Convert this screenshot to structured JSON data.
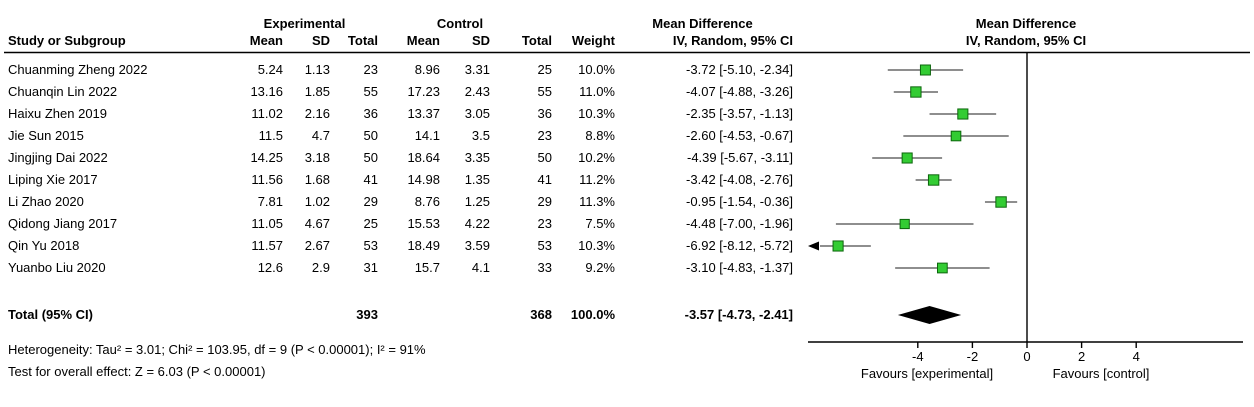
{
  "table": {
    "group_headers": {
      "experimental": "Experimental",
      "control": "Control",
      "md_text": "Mean Difference",
      "md_plot": "Mean Difference"
    },
    "col_headers": {
      "study": "Study or Subgroup",
      "mean1": "Mean",
      "sd1": "SD",
      "total1": "Total",
      "mean2": "Mean",
      "sd2": "SD",
      "total2": "Total",
      "weight": "Weight",
      "ci": "IV, Random, 95% CI",
      "ci_plot": "IV, Random, 95% CI"
    },
    "studies": [
      {
        "name": "Chuanming Zheng 2022",
        "mean1": "5.24",
        "sd1": "1.13",
        "n1": "23",
        "mean2": "8.96",
        "sd2": "3.31",
        "n2": "25",
        "weight": "10.0%",
        "ci": "-3.72 [-5.10, -2.34]"
      },
      {
        "name": "Chuanqin Lin 2022",
        "mean1": "13.16",
        "sd1": "1.85",
        "n1": "55",
        "mean2": "17.23",
        "sd2": "2.43",
        "n2": "55",
        "weight": "11.0%",
        "ci": "-4.07 [-4.88, -3.26]"
      },
      {
        "name": "Haixu Zhen 2019",
        "mean1": "11.02",
        "sd1": "2.16",
        "n1": "36",
        "mean2": "13.37",
        "sd2": "3.05",
        "n2": "36",
        "weight": "10.3%",
        "ci": "-2.35 [-3.57, -1.13]"
      },
      {
        "name": "Jie Sun 2015",
        "mean1": "11.5",
        "sd1": "4.7",
        "n1": "50",
        "mean2": "14.1",
        "sd2": "3.5",
        "n2": "23",
        "weight": "8.8%",
        "ci": "-2.60 [-4.53, -0.67]"
      },
      {
        "name": "Jingjing Dai 2022",
        "mean1": "14.25",
        "sd1": "3.18",
        "n1": "50",
        "mean2": "18.64",
        "sd2": "3.35",
        "n2": "50",
        "weight": "10.2%",
        "ci": "-4.39 [-5.67, -3.11]"
      },
      {
        "name": "Liping Xie 2017",
        "mean1": "11.56",
        "sd1": "1.68",
        "n1": "41",
        "mean2": "14.98",
        "sd2": "1.35",
        "n2": "41",
        "weight": "11.2%",
        "ci": "-3.42 [-4.08, -2.76]"
      },
      {
        "name": "Li Zhao 2020",
        "mean1": "7.81",
        "sd1": "1.02",
        "n1": "29",
        "mean2": "8.76",
        "sd2": "1.25",
        "n2": "29",
        "weight": "11.3%",
        "ci": "-0.95 [-1.54, -0.36]"
      },
      {
        "name": "Qidong Jiang 2017",
        "mean1": "11.05",
        "sd1": "4.67",
        "n1": "25",
        "mean2": "15.53",
        "sd2": "4.22",
        "n2": "23",
        "weight": "7.5%",
        "ci": "-4.48 [-7.00, -1.96]"
      },
      {
        "name": "Qin Yu 2018",
        "mean1": "11.57",
        "sd1": "2.67",
        "n1": "53",
        "mean2": "18.49",
        "sd2": "3.59",
        "n2": "53",
        "weight": "10.3%",
        "ci": "-6.92 [-8.12, -5.72]"
      },
      {
        "name": "Yuanbo Liu 2020",
        "mean1": "12.6",
        "sd1": "2.9",
        "n1": "31",
        "mean2": "15.7",
        "sd2": "4.1",
        "n2": "33",
        "weight": "9.2%",
        "ci": "-3.10 [-4.83, -1.37]"
      }
    ],
    "total_row": {
      "label": "Total (95% CI)",
      "n1": "393",
      "n2": "368",
      "weight": "100.0%",
      "ci": "-3.57 [-4.73, -2.41]"
    },
    "footer": {
      "heterogeneity": "Heterogeneity: Tau² = 3.01; Chi² = 103.95, df = 9 (P < 0.00001); I² = 91%",
      "overall_effect": "Test for overall effect: Z = 6.03 (P < 0.00001)"
    }
  },
  "chart_data": {
    "type": "forest",
    "effect_measure": "Mean Difference, IV, Random, 95% CI",
    "xlim": [
      -8,
      8
    ],
    "ticks": [
      -4,
      -2,
      0,
      2,
      4
    ],
    "zero_line": 0,
    "xlabel_left": "Favours [experimental]",
    "xlabel_right": "Favours [control]",
    "studies": [
      {
        "name": "Chuanming Zheng 2022",
        "est": -3.72,
        "lo": -5.1,
        "hi": -2.34,
        "weight": 10.0
      },
      {
        "name": "Chuanqin Lin 2022",
        "est": -4.07,
        "lo": -4.88,
        "hi": -3.26,
        "weight": 11.0
      },
      {
        "name": "Haixu Zhen 2019",
        "est": -2.35,
        "lo": -3.57,
        "hi": -1.13,
        "weight": 10.3
      },
      {
        "name": "Jie Sun 2015",
        "est": -2.6,
        "lo": -4.53,
        "hi": -0.67,
        "weight": 8.8
      },
      {
        "name": "Jingjing Dai 2022",
        "est": -4.39,
        "lo": -5.67,
        "hi": -3.11,
        "weight": 10.2
      },
      {
        "name": "Liping Xie 2017",
        "est": -3.42,
        "lo": -4.08,
        "hi": -2.76,
        "weight": 11.2
      },
      {
        "name": "Li Zhao 2020",
        "est": -0.95,
        "lo": -1.54,
        "hi": -0.36,
        "weight": 11.3
      },
      {
        "name": "Qidong Jiang 2017",
        "est": -4.48,
        "lo": -7.0,
        "hi": -1.96,
        "weight": 7.5
      },
      {
        "name": "Qin Yu 2018",
        "est": -6.92,
        "lo": -8.12,
        "hi": -5.72,
        "weight": 10.3
      },
      {
        "name": "Yuanbo Liu 2020",
        "est": -3.1,
        "lo": -4.83,
        "hi": -1.37,
        "weight": 9.2
      }
    ],
    "total": {
      "est": -3.57,
      "lo": -4.73,
      "hi": -2.41,
      "weight": 100.0
    },
    "marker_color": "#33CC33",
    "marker_border_color": "#0D660D",
    "ci_line_color": "#4A4A4A",
    "diamond_color": "#000000"
  }
}
